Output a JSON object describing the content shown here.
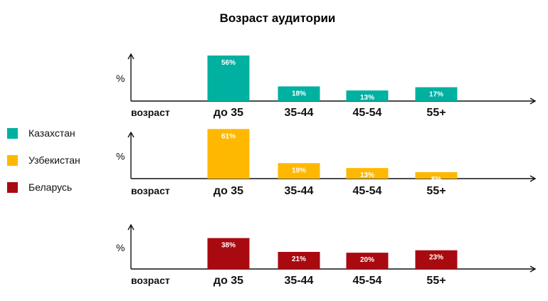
{
  "chart_data": {
    "type": "bar",
    "title": "Возраст аудитории",
    "unit_label": "%",
    "x_axis_word": "возраст",
    "categories": [
      "до 35",
      "35-44",
      "45-54",
      "55+"
    ],
    "legend_position": "left",
    "ylim": [
      0,
      70
    ],
    "series": [
      {
        "name": "Казахстан",
        "color": "#00b0a0",
        "values": [
          56,
          18,
          13,
          17
        ],
        "labels": [
          "56%",
          "18%",
          "13%",
          "17%"
        ]
      },
      {
        "name": "Узбекистан",
        "color": "#ffb800",
        "values": [
          61,
          19,
          13,
          8
        ],
        "labels": [
          "61%",
          "19%",
          "13%",
          "8%"
        ]
      },
      {
        "name": "Беларусь",
        "color": "#a80a10",
        "values": [
          38,
          21,
          20,
          23
        ],
        "labels": [
          "38%",
          "21%",
          "20%",
          "23%"
        ]
      }
    ]
  }
}
